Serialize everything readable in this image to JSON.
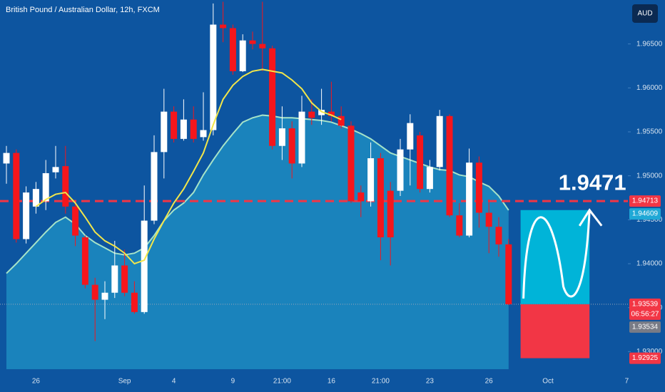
{
  "chart_data": {
    "type": "candlestick",
    "title": "British Pound / Australian Dollar, 12h, FXCM",
    "currency": "AUD",
    "background": "#0d55a0",
    "up_color": "#ffffff",
    "down_color": "#f5161c",
    "grid": false,
    "categories": [
      null,
      null,
      null,
      "26",
      null,
      null,
      null,
      null,
      null,
      null,
      null,
      null,
      "Sep",
      null,
      null,
      null,
      null,
      "4",
      null,
      null,
      null,
      null,
      null,
      "9",
      null,
      null,
      null,
      null,
      "21:00",
      null,
      null,
      null,
      null,
      "16",
      null,
      null,
      null,
      null,
      "21:00",
      null,
      null,
      null,
      null,
      "23",
      null,
      null,
      null,
      null,
      null,
      "26",
      null,
      null,
      null,
      null,
      null,
      "Oct",
      null,
      null,
      null,
      null,
      null,
      null,
      null,
      "7"
    ],
    "open": [
      1.9514,
      1.9526,
      1.9428,
      1.9465,
      1.9471,
      1.9504,
      1.9511,
      1.9465,
      1.943,
      1.9376,
      1.9359,
      1.9367,
      1.9398,
      1.9367,
      1.9345,
      1.9449,
      1.9527,
      1.9573,
      1.9542,
      1.9564,
      1.9544,
      1.9552,
      1.9672,
      1.9668,
      1.9619,
      1.9654,
      1.965,
      1.9645,
      1.9534,
      1.9554,
      1.9514,
      1.9573,
      1.9569,
      1.9573,
      1.9568,
      1.9557,
      1.9481,
      1.9471,
      1.952,
      1.9483,
      1.9483,
      1.953,
      1.9546,
      1.9485,
      1.951,
      1.9568,
      1.9455,
      1.9432,
      1.9515,
      1.9458,
      1.9442,
      1.9422,
      null,
      null,
      null,
      null,
      null,
      null,
      null,
      null,
      null,
      null,
      null,
      null
    ],
    "high": [
      1.9534,
      1.953,
      1.9488,
      1.9493,
      1.9518,
      1.9534,
      1.9534,
      1.9469,
      1.9432,
      1.9384,
      1.938,
      1.9426,
      1.9416,
      1.938,
      1.9489,
      1.9546,
      1.9599,
      1.9579,
      1.9587,
      1.9579,
      1.9595,
      1.9696,
      1.9698,
      1.9672,
      1.9661,
      1.9664,
      1.9698,
      1.9648,
      1.9579,
      1.9562,
      1.9591,
      1.9587,
      1.9599,
      1.9607,
      1.9579,
      1.9562,
      1.9489,
      1.9538,
      1.9526,
      1.9493,
      1.9542,
      1.957,
      1.955,
      1.9518,
      1.9575,
      1.957,
      1.9469,
      1.9531,
      1.9522,
      1.9473,
      1.9453,
      1.9428,
      null,
      null,
      null,
      null,
      null,
      null,
      null,
      null,
      null,
      null,
      null,
      null
    ],
    "low": [
      1.9491,
      1.9424,
      1.9423,
      1.9457,
      1.9461,
      1.9497,
      1.9457,
      1.942,
      1.9372,
      1.9312,
      1.9337,
      1.9361,
      1.9363,
      1.9343,
      1.9343,
      1.9445,
      1.9497,
      1.9538,
      1.954,
      1.9538,
      1.954,
      1.9546,
      1.9652,
      1.9615,
      1.9618,
      1.9644,
      1.9619,
      1.953,
      1.9518,
      1.9497,
      1.951,
      1.9558,
      1.9558,
      1.9562,
      1.9554,
      1.9469,
      1.9453,
      1.9465,
      1.9404,
      1.9398,
      1.9477,
      1.9489,
      1.9481,
      1.9481,
      1.9506,
      1.9453,
      1.943,
      1.943,
      1.9441,
      1.9412,
      1.9408,
      1.9353,
      null,
      null,
      null,
      null,
      null,
      null,
      null,
      null,
      null,
      null,
      null,
      null
    ],
    "close": [
      1.9526,
      1.9428,
      1.9481,
      1.9485,
      1.9503,
      1.951,
      1.9465,
      1.9432,
      1.9376,
      1.9359,
      1.9367,
      1.9398,
      1.9367,
      1.9345,
      1.9449,
      1.9527,
      1.9573,
      1.9542,
      1.9564,
      1.9542,
      1.9552,
      1.9672,
      1.9668,
      1.9619,
      1.9654,
      1.965,
      1.9645,
      1.9534,
      1.9554,
      1.9514,
      1.9573,
      1.9566,
      1.9575,
      1.9568,
      1.9557,
      1.9471,
      1.9471,
      1.952,
      1.943,
      1.943,
      1.953,
      1.956,
      1.9485,
      1.951,
      1.9568,
      1.9455,
      1.9432,
      1.9515,
      1.9458,
      1.9442,
      1.9422,
      1.93539,
      null,
      null,
      null,
      null,
      null,
      null,
      null,
      null,
      null,
      null,
      null,
      null
    ],
    "ma_fast": {
      "color": "#f2e64a",
      "values": [
        null,
        null,
        null,
        1.9465,
        1.9473,
        1.9479,
        1.9481,
        1.9469,
        1.9453,
        1.9436,
        1.9426,
        1.942,
        1.9412,
        1.94,
        1.9404,
        1.9428,
        1.9449,
        1.9469,
        1.9485,
        1.9505,
        1.9526,
        1.9558,
        1.9587,
        1.9603,
        1.9613,
        1.9619,
        1.9621,
        1.9619,
        1.9617,
        1.9609,
        1.9599,
        1.9583,
        1.9573,
        1.9569,
        1.9564,
        null,
        null,
        null,
        null,
        null,
        null,
        null,
        null,
        null,
        null,
        null,
        null,
        null,
        null,
        null,
        null,
        null,
        null,
        null,
        null,
        null,
        null,
        null,
        null,
        null,
        null,
        null,
        null,
        null
      ]
    },
    "ma_slow": {
      "color": "#a6e3c8",
      "fill": "#1c88bf",
      "values": [
        1.9389,
        1.94,
        1.9412,
        1.9424,
        1.9436,
        1.9447,
        1.9453,
        1.9445,
        1.9432,
        1.9424,
        1.9418,
        1.9412,
        1.941,
        1.9412,
        1.9418,
        1.9432,
        1.9449,
        1.9461,
        1.9469,
        1.9481,
        1.9501,
        1.9518,
        1.9534,
        1.9548,
        1.9561,
        1.9566,
        1.9569,
        1.9568,
        1.9566,
        1.9566,
        1.9565,
        1.9564,
        1.9563,
        1.9561,
        1.9557,
        1.9553,
        1.9548,
        1.9542,
        1.9534,
        1.9526,
        1.9522,
        1.9518,
        1.9514,
        1.951,
        1.9507,
        1.9506,
        1.9501,
        1.9499,
        1.9493,
        1.9488,
        1.9477,
        1.94609,
        null,
        null,
        null,
        null,
        null,
        null,
        null,
        null,
        null,
        null,
        null,
        null
      ]
    },
    "ylim": [
      1.928,
      1.97
    ],
    "yticks": [
      {
        "value": 1.93,
        "label": "1.93000"
      },
      {
        "value": 1.935,
        "label": "1.93500"
      },
      {
        "value": 1.94,
        "label": "1.94000"
      },
      {
        "value": 1.945,
        "label": "1.94500"
      },
      {
        "value": 1.95,
        "label": "1.95000"
      },
      {
        "value": 1.955,
        "label": "1.95500"
      },
      {
        "value": 1.96,
        "label": "1.96000"
      },
      {
        "value": 1.965,
        "label": "1.96500"
      }
    ],
    "price_labels": [
      {
        "value": 1.94713,
        "color": "#f23645",
        "line": "dashed"
      },
      {
        "value": 1.94609,
        "color": "#1fa8d6"
      },
      {
        "value": 1.93539,
        "color": "#f23645",
        "line": "dotted",
        "countdown": "06:56:27"
      },
      {
        "value": 1.93534,
        "color": "#787b86"
      },
      {
        "value": 1.92925,
        "color": "#f23645"
      }
    ],
    "projection": {
      "label": 1.9471,
      "target": 1.9461,
      "entry": 1.93539,
      "stop": 1.92925,
      "target_color": "#00b4d8",
      "stop_color": "#f23645"
    }
  }
}
